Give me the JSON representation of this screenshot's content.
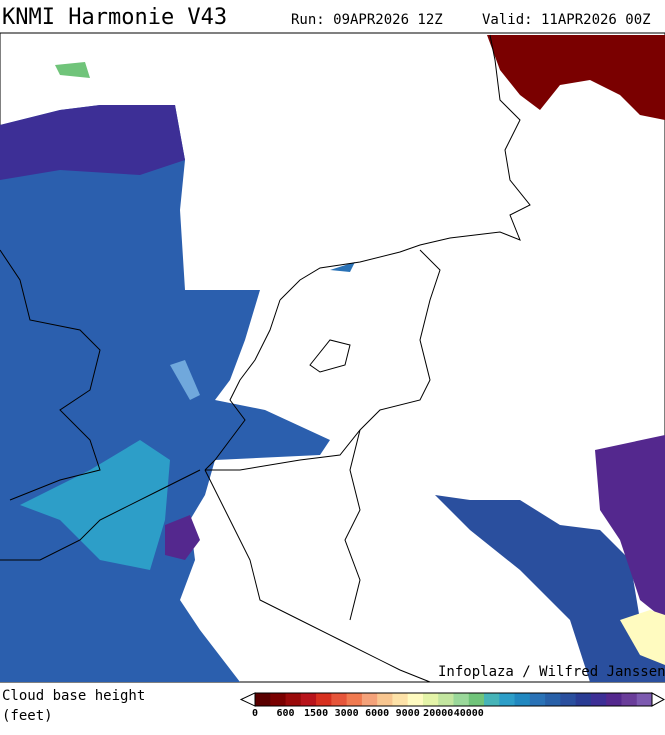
{
  "header": {
    "title": "KNMI Harmonie V43",
    "run": "Run: 09APR2026 12Z",
    "valid": "Valid: 11APR2026 00Z"
  },
  "map": {
    "credit": "Infoplaza / Wilfred Janssen"
  },
  "legend": {
    "label_line1": "Cloud base height",
    "label_line2": "(feet)",
    "ticks": [
      "0",
      "600",
      "1500",
      "3000",
      "6000",
      "9000",
      "20000",
      "40000"
    ],
    "colors": [
      "#5a0000",
      "#7a0000",
      "#9a0a0a",
      "#b8141b",
      "#d7301f",
      "#e6553a",
      "#f07a50",
      "#f4a27a",
      "#f8c690",
      "#fde2a8",
      "#fffbc0",
      "#e4f4a8",
      "#c3e6a0",
      "#9ad89a",
      "#70c47a",
      "#46b4b8",
      "#2d9ec8",
      "#2188c0",
      "#2a72b6",
      "#2860a8",
      "#2a4f9e",
      "#2a3c94",
      "#3d2f96",
      "#54288e",
      "#6a3d9a",
      "#7d5ab0"
    ]
  }
}
